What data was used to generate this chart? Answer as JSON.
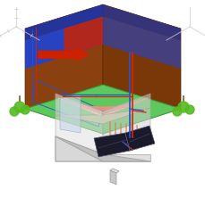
{
  "grass_top": "#5dc85d",
  "grass_edge": "#3a9a3a",
  "earth_left": "#8B4010",
  "earth_right": "#7a3808",
  "earth_front_left": "#7a3505",
  "earth_front_right": "#6a2e05",
  "geo_blue": "#2244cc",
  "geo_purple": "#6633cc",
  "geo_red": "#cc2200",
  "pipe_red": "#dd2200",
  "pipe_blue": "#2255cc",
  "wall_color": "#e0e0e0",
  "wall_edge": "#aaaaaa",
  "wall_alpha": 0.7,
  "roof_left_color": "#cccccc",
  "roof_right_color": "#b5b5b5",
  "roof_edge": "#999999",
  "solar_color": "#1a1a2a",
  "solar_edge": "#444466",
  "floor_heat_color": "#ffcccc",
  "floor_base": "#e8ddd0",
  "chimney_color": "#c8c8c8",
  "bush_color": "#55bb22",
  "trunk_color": "#885522",
  "arrow_red": "#cc2200",
  "axis_color": "#cccccc",
  "white": "#ffffff",
  "mid_floor_color": "#d0c8b8",
  "ground_inner_top": "#3aaa3a",
  "geothermal_rect_color": "#3366cc"
}
